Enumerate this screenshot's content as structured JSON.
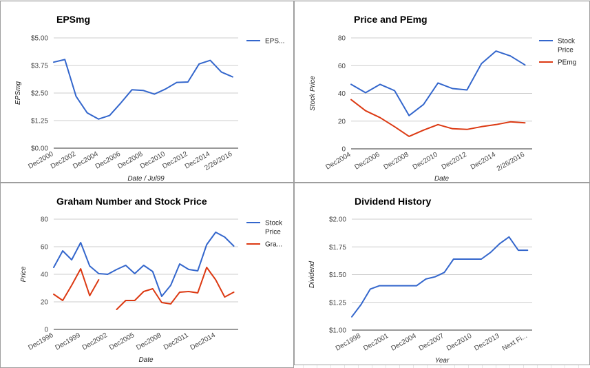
{
  "chart_data": [
    {
      "type": "line",
      "title": "EPSmg",
      "xlabel": "Date / Jul99",
      "ylabel": "EPSmg",
      "ylim": [
        0,
        5
      ],
      "y_ticks": [
        "$0.00",
        "$1.25",
        "$2.50",
        "$3.75",
        "$5.00"
      ],
      "x_ticks": [
        "Dec2000",
        "Dec2002",
        "Dec2004",
        "Dec2006",
        "Dec2008",
        "Dec2010",
        "Dec2012",
        "Dec2014",
        "2/26/2016"
      ],
      "legend_position": "right",
      "series": [
        {
          "name": "EPS...",
          "color": "#3366cc",
          "x": [
            2000,
            2001,
            2002,
            2003,
            2004,
            2005,
            2006,
            2007,
            2008,
            2009,
            2010,
            2011,
            2012,
            2013,
            2014,
            2015,
            2016
          ],
          "values": [
            3.9,
            4.02,
            2.35,
            1.6,
            1.32,
            1.48,
            2.05,
            2.65,
            2.62,
            2.45,
            2.68,
            2.98,
            3.0,
            3.82,
            3.98,
            3.45,
            3.23
          ]
        }
      ]
    },
    {
      "type": "line",
      "title": "Price and PEmg",
      "xlabel": "Date",
      "ylabel": "Stock Price",
      "ylim": [
        0,
        80
      ],
      "y_ticks": [
        "0",
        "20",
        "40",
        "60",
        "80"
      ],
      "x_ticks": [
        "Dec2004",
        "Dec2006",
        "Dec2008",
        "Dec2010",
        "Dec2012",
        "Dec2014",
        "2/26/2016"
      ],
      "legend_position": "right",
      "series": [
        {
          "name": "Stock Price",
          "color": "#3366cc",
          "x": [
            2004,
            2005,
            2006,
            2007,
            2008,
            2009,
            2010,
            2011,
            2012,
            2013,
            2014,
            2015,
            2016
          ],
          "values": [
            46.5,
            40.5,
            46.5,
            42,
            24,
            32,
            47.5,
            43.5,
            42.5,
            61.5,
            70.5,
            67,
            60.5
          ]
        },
        {
          "name": "PEmg",
          "color": "#dc3912",
          "x": [
            2004,
            2005,
            2006,
            2007,
            2008,
            2009,
            2010,
            2011,
            2012,
            2013,
            2014,
            2015,
            2016
          ],
          "values": [
            35.5,
            27.5,
            22.5,
            16,
            9,
            13.5,
            17.5,
            14.5,
            14,
            16,
            17.5,
            19.5,
            18.8
          ]
        }
      ]
    },
    {
      "type": "line",
      "title": "Graham Number and Stock Price",
      "xlabel": "Date",
      "ylabel": "Price",
      "ylim": [
        0,
        80
      ],
      "y_ticks": [
        "0",
        "20",
        "40",
        "60",
        "80"
      ],
      "x_ticks": [
        "Dec1996",
        "Dec1999",
        "Dec2002",
        "Dec2005",
        "Dec2008",
        "Dec2011",
        "Dec2014"
      ],
      "legend_position": "right",
      "series": [
        {
          "name": "Stock Price",
          "color": "#3366cc",
          "x": [
            1996,
            1997,
            1998,
            1999,
            2000,
            2001,
            2002,
            2003,
            2004,
            2005,
            2006,
            2007,
            2008,
            2009,
            2010,
            2011,
            2012,
            2013,
            2014,
            2015,
            2016
          ],
          "values": [
            45,
            57,
            50.5,
            63,
            46,
            40.5,
            40,
            43.5,
            46.5,
            40.5,
            46.5,
            42,
            24,
            32,
            47.5,
            43.5,
            42.5,
            61.5,
            70.5,
            67,
            60.5
          ]
        },
        {
          "name": "Gra...",
          "color": "#dc3912",
          "x": [
            1996,
            1997,
            1998,
            1999,
            2000,
            2001,
            2002,
            2003,
            2004,
            2005,
            2006,
            2007,
            2008,
            2009,
            2010,
            2011,
            2012,
            2013,
            2014,
            2015,
            2016
          ],
          "values": [
            25.5,
            21,
            32,
            44,
            24.5,
            36,
            null,
            14.5,
            21,
            21,
            27.5,
            29.5,
            19.5,
            18.5,
            27,
            27.5,
            26.5,
            45,
            36,
            23.5,
            27
          ]
        }
      ]
    },
    {
      "type": "line",
      "title": "Dividend History",
      "xlabel": "Year",
      "ylabel": "Dividend",
      "ylim": [
        1.0,
        2.0
      ],
      "y_ticks": [
        "$1.00",
        "$1.25",
        "$1.50",
        "$1.75",
        "$2.00"
      ],
      "x_ticks": [
        "Dec1998",
        "Dec2001",
        "Dec2004",
        "Dec2007",
        "Dec2010",
        "Dec2013",
        "Next Fi..."
      ],
      "legend_position": "none",
      "series": [
        {
          "color": "#3366cc",
          "x": [
            1997,
            1998,
            1999,
            2000,
            2001,
            2002,
            2003,
            2004,
            2005,
            2006,
            2007,
            2008,
            2009,
            2010,
            2011,
            2012,
            2013,
            2014,
            2015,
            2016
          ],
          "values": [
            1.12,
            1.23,
            1.37,
            1.4,
            1.4,
            1.4,
            1.4,
            1.4,
            1.46,
            1.48,
            1.52,
            1.64,
            1.64,
            1.64,
            1.64,
            1.7,
            1.78,
            1.84,
            1.72,
            1.72
          ]
        }
      ]
    }
  ]
}
